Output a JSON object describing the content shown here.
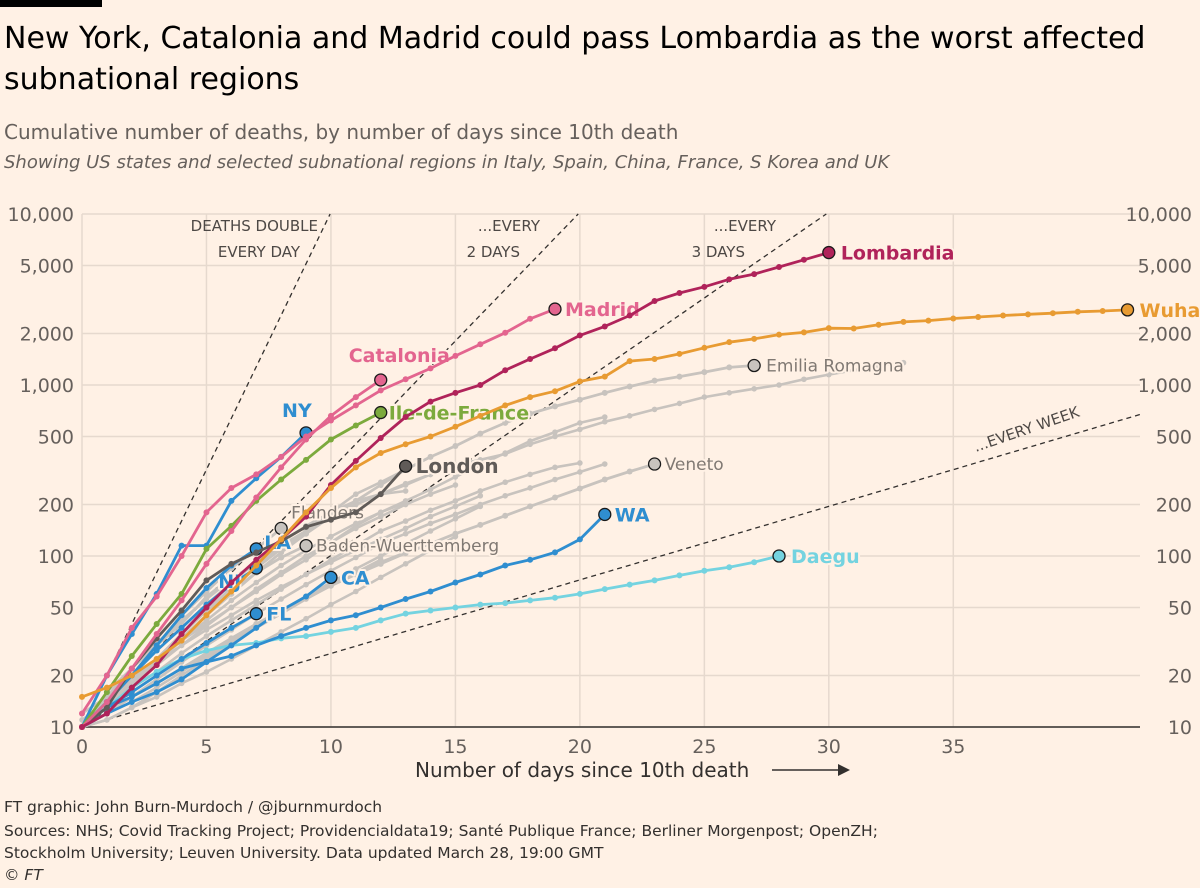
{
  "title": "New York, Catalonia and Madrid could pass Lombardia as the worst affected subnational regions",
  "subtitle": "Cumulative number of deaths, by number of days since 10th death",
  "subtitle2": "Showing US states and selected subnational regions in Italy, Spain, China, France, S Korea and UK",
  "footer": {
    "credit": "FT graphic: John Burn-Murdoch / @jburnmurdoch",
    "sources1": "Sources: NHS; Covid Tracking Project; Providencialdata19; Santé Publique France; Berliner Morgenpost; OpenZH;",
    "sources2": "Stockholm University; Leuven University. Data updated March 28, 19:00 GMT",
    "copyright": "© FT"
  },
  "chart_data": {
    "type": "line",
    "xlabel": "Number of days since 10th death",
    "ylabel": "",
    "xlim": [
      0,
      42.5
    ],
    "ylim": [
      10,
      10000
    ],
    "y_scale": "log",
    "x_ticks": [
      "0",
      "5",
      "10",
      "15",
      "20",
      "25",
      "30",
      "35"
    ],
    "y_ticks": [
      {
        "value": 10,
        "label": "10"
      },
      {
        "value": 20,
        "label": "20"
      },
      {
        "value": 50,
        "label": "50"
      },
      {
        "value": 100,
        "label": "100"
      },
      {
        "value": 200,
        "label": "200"
      },
      {
        "value": 500,
        "label": "500"
      },
      {
        "value": 1000,
        "label": "1,000"
      },
      {
        "value": 2000,
        "label": "2,000"
      },
      {
        "value": 5000,
        "label": "5,000"
      },
      {
        "value": 10000,
        "label": "10,000"
      }
    ],
    "grid": true,
    "colors": {
      "lombardia": "#b0235a",
      "madrid": "#e3658f",
      "wuhan": "#e89b32",
      "ile": "#7caa3d",
      "london": "#605b58",
      "us": "#2f8ed0",
      "daegu": "#74d3e0",
      "grey": "#c8c3be",
      "greyLabel": "#807973"
    },
    "reference_lines": [
      {
        "label1": "DEATHS DOUBLE",
        "label2": "EVERY DAY",
        "doubling_days": 1
      },
      {
        "label1": "...EVERY",
        "label2": "2 DAYS",
        "doubling_days": 2
      },
      {
        "label1": "...EVERY",
        "label2": "3 DAYS",
        "doubling_days": 3
      },
      {
        "label1": "...EVERY WEEK",
        "label2": "",
        "doubling_days": 7
      }
    ],
    "grey_series": [
      [
        10,
        16,
        22,
        30,
        40,
        58,
        75,
        88,
        115,
        140,
        170,
        200,
        230,
        265,
        300,
        340,
        365,
        395,
        450,
        500,
        550,
        610,
        660,
        720,
        780,
        850,
        900,
        950,
        1000,
        1080,
        1150,
        1220,
        1300,
        1350
      ],
      [
        10,
        14,
        19,
        25,
        32,
        40,
        50,
        62,
        78,
        95,
        120,
        150,
        180,
        210,
        245,
        290,
        340,
        400,
        470,
        530,
        600,
        650
      ],
      [
        10,
        13,
        17,
        21,
        27,
        34,
        42,
        52,
        64,
        78,
        95,
        115,
        140,
        160,
        185,
        210,
        240,
        270,
        300,
        330,
        350
      ],
      [
        10,
        12,
        15,
        19,
        24,
        30,
        37,
        46,
        56,
        68,
        82,
        98,
        118,
        135,
        155,
        175,
        200,
        225,
        250,
        280,
        310,
        345
      ],
      [
        10,
        14,
        20,
        28,
        38,
        52,
        70,
        92,
        120,
        150,
        180,
        210,
        230,
        240
      ],
      [
        10,
        13,
        18,
        25,
        35,
        48,
        65,
        85,
        110,
        140,
        180,
        230,
        270,
        320,
        380
      ],
      [
        10,
        12,
        15,
        18,
        22,
        27,
        33,
        40,
        48,
        58,
        70,
        84,
        100,
        118,
        140,
        165,
        195
      ],
      [
        10,
        11,
        13,
        15,
        18,
        21,
        25,
        30,
        36,
        43,
        52,
        62,
        75,
        90,
        108,
        130
      ],
      [
        10,
        15,
        22,
        31,
        42,
        56,
        73,
        92,
        115,
        140,
        170,
        200,
        230,
        260,
        300,
        330,
        360
      ],
      [
        10,
        13,
        17,
        23,
        30,
        39,
        50,
        64,
        80,
        100,
        120,
        145,
        170,
        200,
        230,
        260
      ],
      [
        11,
        14,
        18,
        24,
        32,
        42,
        55,
        70,
        88,
        108,
        130,
        155,
        180,
        205
      ],
      [
        10,
        12,
        14,
        17,
        21,
        26,
        32,
        39,
        47,
        57,
        68,
        80,
        92,
        105
      ],
      [
        10,
        11,
        13,
        16,
        20,
        25,
        31,
        38,
        46,
        56,
        67,
        80,
        95
      ],
      [
        12,
        15,
        19,
        24,
        30,
        37,
        45,
        55,
        66,
        78,
        92,
        108,
        125,
        145,
        170,
        195,
        225
      ]
    ],
    "labeled_series": [
      {
        "key": "emilia",
        "name": "Emilia Romagna",
        "colorKey": "grey",
        "labelColorKey": "greyLabel",
        "bold": false,
        "fontSize": 17,
        "dx": 12,
        "dy": 6,
        "values": [
          10,
          14,
          18,
          24,
          33,
          45,
          60,
          80,
          105,
          135,
          170,
          210,
          260,
          320,
          380,
          440,
          520,
          600,
          680,
          750,
          820,
          900,
          980,
          1060,
          1120,
          1190,
          1267,
          1300
        ]
      },
      {
        "key": "veneto",
        "name": "Veneto",
        "colorKey": "grey",
        "labelColorKey": "greyLabel",
        "bold": false,
        "fontSize": 17,
        "dx": 10,
        "dy": 6,
        "values": [
          10,
          12,
          15,
          18,
          22,
          27,
          33,
          40,
          48,
          57,
          67,
          78,
          90,
          104,
          118,
          135,
          152,
          172,
          195,
          220,
          248,
          280,
          312,
          345
        ]
      },
      {
        "key": "flanders",
        "name": "Flanders",
        "colorKey": "grey",
        "labelColorKey": "greyLabel",
        "bold": false,
        "fontSize": 17,
        "dx": 10,
        "dy": -10,
        "values": [
          10,
          14,
          20,
          30,
          45,
          62,
          85,
          110,
          145
        ]
      },
      {
        "key": "baden",
        "name": "Baden-Wuerttemberg",
        "colorKey": "grey",
        "labelColorKey": "greyLabel",
        "bold": false,
        "fontSize": 17,
        "dx": 10,
        "dy": 6,
        "values": [
          10,
          13,
          18,
          25,
          35,
          48,
          62,
          80,
          98,
          115
        ]
      },
      {
        "key": "daegu",
        "name": "Daegu",
        "colorKey": "daegu",
        "labelColorKey": "daegu",
        "bold": true,
        "fontSize": 19,
        "dx": 12,
        "dy": 7,
        "values": [
          10,
          13,
          17,
          21,
          25,
          28,
          30,
          31,
          33,
          34,
          36,
          38,
          42,
          46,
          48,
          50,
          52,
          53,
          55,
          57,
          60,
          64,
          68,
          72,
          77,
          82,
          86,
          92,
          100
        ]
      },
      {
        "key": "wa",
        "name": "WA",
        "colorKey": "us",
        "labelColorKey": "us",
        "bold": true,
        "fontSize": 19,
        "dx": 10,
        "dy": 7,
        "values": [
          10,
          13,
          15,
          18,
          22,
          24,
          26,
          30,
          34,
          38,
          42,
          45,
          50,
          56,
          62,
          70,
          78,
          88,
          95,
          105,
          125,
          175
        ]
      },
      {
        "key": "ca",
        "name": "CA",
        "colorKey": "us",
        "labelColorKey": "us",
        "bold": true,
        "fontSize": 19,
        "dx": 10,
        "dy": 7,
        "values": [
          10,
          12,
          14,
          16,
          19,
          24,
          30,
          38,
          48,
          58,
          75
        ]
      },
      {
        "key": "fl",
        "name": "FL",
        "colorKey": "us",
        "labelColorKey": "us",
        "bold": true,
        "fontSize": 19,
        "dx": 10,
        "dy": 7,
        "values": [
          10,
          13,
          16,
          20,
          25,
          31,
          38,
          46
        ]
      },
      {
        "key": "nj",
        "name": "NJ",
        "colorKey": "us",
        "labelColorKey": "us",
        "bold": true,
        "fontSize": 19,
        "dx": -38,
        "dy": 20,
        "values": [
          10,
          14,
          20,
          28,
          38,
          52,
          68,
          85
        ]
      },
      {
        "key": "la",
        "name": "LA",
        "colorKey": "us",
        "labelColorKey": "us",
        "bold": true,
        "fontSize": 19,
        "dx": 8,
        "dy": 0,
        "values": [
          10,
          14,
          20,
          30,
          45,
          65,
          88,
          110
        ]
      },
      {
        "key": "ny",
        "name": "NY",
        "colorKey": "us",
        "labelColorKey": "us",
        "bold": true,
        "fontSize": 19,
        "dx": -24,
        "dy": -16,
        "values": [
          10,
          20,
          35,
          60,
          115,
          115,
          210,
          285,
          380,
          525
        ]
      },
      {
        "key": "london",
        "name": "London",
        "colorKey": "london",
        "labelColorKey": "london",
        "bold": true,
        "fontSize": 20,
        "dx": 10,
        "dy": 7,
        "values": [
          10,
          13,
          22,
          33,
          48,
          72,
          90,
          105,
          122,
          148,
          163,
          180,
          230,
          335
        ]
      },
      {
        "key": "ile",
        "name": "Ile-de-France",
        "colorKey": "ile",
        "labelColorKey": "ile",
        "bold": true,
        "fontSize": 19,
        "dx": 8,
        "dy": 7,
        "values": [
          10,
          16,
          26,
          40,
          60,
          110,
          150,
          210,
          280,
          365,
          480,
          580,
          690
        ]
      },
      {
        "key": "catalonia",
        "name": "Catalonia",
        "colorKey": "madrid",
        "labelColorKey": "madrid",
        "bold": true,
        "fontSize": 19,
        "dx": -32,
        "dy": -18,
        "values": [
          10,
          14,
          22,
          35,
          55,
          90,
          140,
          220,
          330,
          480,
          660,
          850,
          1070
        ]
      },
      {
        "key": "madrid",
        "name": "Madrid",
        "colorKey": "madrid",
        "labelColorKey": "madrid",
        "bold": true,
        "fontSize": 19,
        "dx": 10,
        "dy": 7,
        "values": [
          12,
          20,
          38,
          58,
          100,
          180,
          250,
          300,
          380,
          500,
          620,
          760,
          930,
          1080,
          1250,
          1480,
          1730,
          2020,
          2440,
          2780
        ]
      },
      {
        "key": "lombardia",
        "name": "Lombardia",
        "colorKey": "lombardia",
        "labelColorKey": "lombardia",
        "bold": true,
        "fontSize": 19,
        "dx": 12,
        "dy": 7,
        "values": [
          10,
          12,
          17,
          23,
          35,
          50,
          70,
          95,
          125,
          170,
          260,
          360,
          490,
          650,
          800,
          900,
          1000,
          1220,
          1420,
          1640,
          1950,
          2200,
          2550,
          3100,
          3450,
          3750,
          4150,
          4450,
          4900,
          5400,
          5950
        ]
      },
      {
        "key": "wuhan",
        "name": "Wuhan",
        "colorKey": "wuhan",
        "labelColorKey": "wuhan",
        "bold": true,
        "fontSize": 19,
        "dx": 12,
        "dy": 7,
        "values": [
          15,
          17,
          20,
          25,
          32,
          45,
          62,
          88,
          125,
          180,
          250,
          330,
          400,
          450,
          500,
          570,
          660,
          760,
          850,
          920,
          1050,
          1120,
          1380,
          1420,
          1520,
          1650,
          1780,
          1860,
          1970,
          2030,
          2150,
          2140,
          2250,
          2340,
          2380,
          2450,
          2500,
          2550,
          2590,
          2630,
          2680,
          2710,
          2750
        ]
      }
    ]
  }
}
